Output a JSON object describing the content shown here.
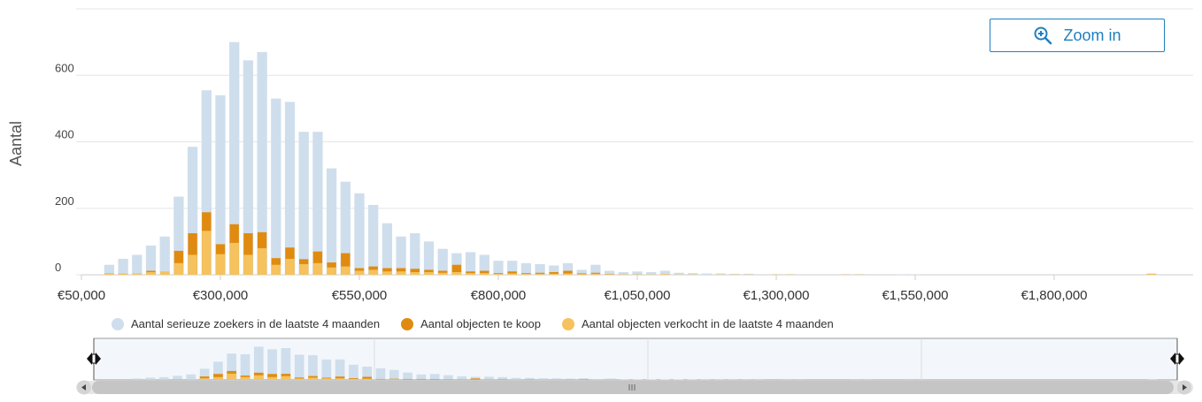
{
  "zoom_button": {
    "label": "Zoom in",
    "icon": "zoom-in-icon"
  },
  "colors": {
    "seekers": "#cfdeec",
    "for_sale": "#e08b0f",
    "sold": "#f5c25e",
    "grid": "#e6e6e6",
    "axis_text": "#333333",
    "button": "#1f7fbf"
  },
  "legend": [
    {
      "label": "Aantal serieuze zoekers in de laatste 4 maanden",
      "color": "#cfdeec"
    },
    {
      "label": "Aantal objecten te koop",
      "color": "#e08b0f"
    },
    {
      "label": "Aantal objecten verkocht in de laatste 4 maanden",
      "color": "#f5c25e"
    }
  ],
  "chart_data": {
    "type": "bar",
    "ylabel": "Aantal",
    "ylim": [
      0,
      800
    ],
    "yticks": [
      "0",
      "200",
      "400",
      "600"
    ],
    "xticks": [
      "€50,000",
      "€300,000",
      "€550,000",
      "€800,000",
      "€1,050,000",
      "€1,300,000",
      "€1,550,000",
      "€1,800,000"
    ],
    "x_range": [
      50000,
      2050000
    ],
    "bin_width": 25000,
    "grid": true,
    "legend_position": "bottom",
    "navigator": true,
    "x": [
      100000,
      125000,
      150000,
      175000,
      200000,
      225000,
      250000,
      275000,
      300000,
      325000,
      350000,
      375000,
      400000,
      425000,
      450000,
      475000,
      500000,
      525000,
      550000,
      575000,
      600000,
      625000,
      650000,
      675000,
      700000,
      725000,
      750000,
      775000,
      800000,
      825000,
      850000,
      875000,
      900000,
      925000,
      950000,
      975000,
      1000000,
      1025000,
      1050000,
      1075000,
      1100000,
      1125000,
      1150000,
      1175000,
      1200000,
      1225000,
      1250000,
      1300000,
      1325000,
      1425000,
      1450000,
      1525000,
      1550000,
      1975000
    ],
    "series": [
      {
        "name": "Aantal serieuze zoekers in de laatste 4 maanden",
        "values": [
          30,
          48,
          60,
          88,
          115,
          235,
          385,
          555,
          540,
          700,
          645,
          670,
          530,
          520,
          430,
          430,
          320,
          280,
          245,
          210,
          155,
          115,
          125,
          100,
          78,
          65,
          68,
          60,
          42,
          42,
          35,
          32,
          28,
          35,
          15,
          30,
          12,
          8,
          10,
          8,
          12,
          6,
          5,
          4,
          4,
          3,
          3,
          2,
          2,
          2,
          2,
          1,
          1,
          4
        ]
      },
      {
        "name": "Aantal objecten te koop",
        "values": [
          4,
          2,
          3,
          12,
          8,
          72,
          125,
          188,
          92,
          152,
          125,
          128,
          50,
          82,
          47,
          70,
          37,
          65,
          20,
          25,
          20,
          20,
          18,
          15,
          12,
          30,
          10,
          12,
          5,
          10,
          5,
          6,
          8,
          12,
          4,
          6,
          2,
          1,
          1,
          0,
          0,
          0,
          0,
          0,
          0,
          0,
          0,
          0,
          0,
          0,
          0,
          0,
          0,
          0
        ]
      },
      {
        "name": "Aantal objecten verkocht in de laatste 4 maanden",
        "values": [
          5,
          4,
          4,
          8,
          10,
          35,
          60,
          132,
          62,
          96,
          60,
          80,
          30,
          48,
          32,
          35,
          22,
          25,
          12,
          15,
          10,
          10,
          8,
          8,
          6,
          8,
          5,
          5,
          3,
          4,
          3,
          3,
          3,
          4,
          2,
          3,
          1,
          1,
          1,
          1,
          2,
          1,
          1,
          0,
          1,
          1,
          1,
          1,
          1,
          1,
          1,
          0,
          0,
          3
        ]
      }
    ]
  }
}
